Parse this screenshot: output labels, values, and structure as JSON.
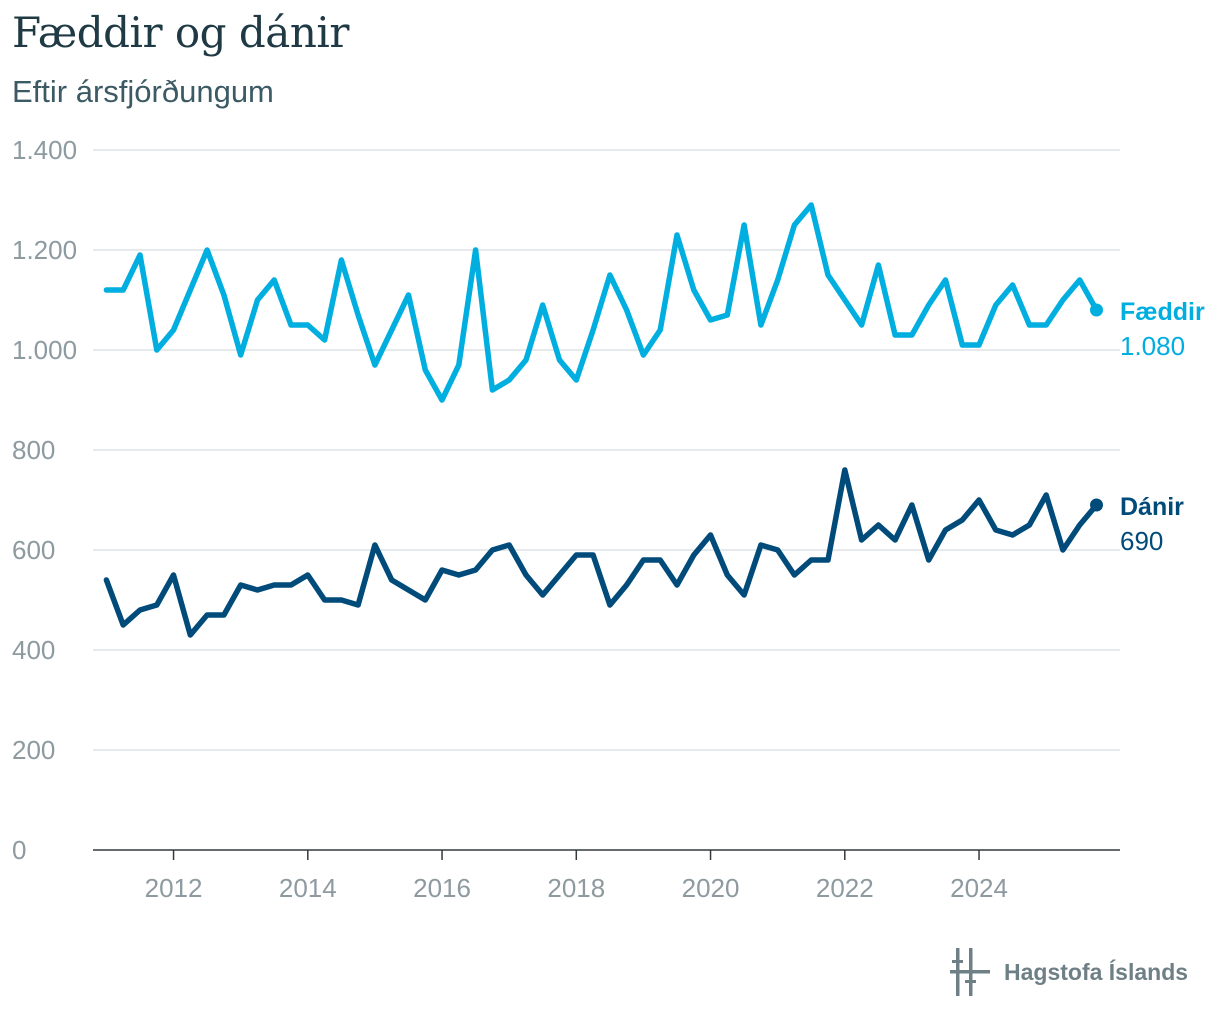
{
  "title": "Fæddir og dánir",
  "subtitle": "Eftir ársfjórðungum",
  "brand": "Hagstofa Íslands",
  "chart_data": {
    "type": "line",
    "title": "Fæddir og dánir",
    "subtitle": "Eftir ársfjórðungum",
    "xlabel": "",
    "ylabel": "",
    "ylim": [
      0,
      1400
    ],
    "yticks": [
      0,
      200,
      400,
      600,
      800,
      1000,
      1200,
      1400
    ],
    "ytick_labels": [
      "0",
      "200",
      "400",
      "600",
      "800",
      "1.000",
      "1.200",
      "1.400"
    ],
    "xlim": [
      2010.8,
      2026.1
    ],
    "xticks": [
      2012,
      2014,
      2016,
      2018,
      2020,
      2022,
      2024
    ],
    "xtick_labels": [
      "2012",
      "2014",
      "2016",
      "2018",
      "2020",
      "2022",
      "2024"
    ],
    "x_start": 2011.0,
    "x_step": 0.25,
    "grid": true,
    "legend": "direct-labels-right",
    "series": [
      {
        "name": "Fæddir",
        "color": "#00aee0",
        "last_label": "1.080",
        "values": [
          1120,
          1120,
          1190,
          1000,
          1040,
          1120,
          1200,
          1110,
          990,
          1100,
          1140,
          1050,
          1050,
          1020,
          1180,
          1070,
          970,
          1040,
          1110,
          960,
          900,
          970,
          1200,
          920,
          940,
          980,
          1090,
          980,
          940,
          1040,
          1150,
          1080,
          990,
          1040,
          1230,
          1120,
          1060,
          1070,
          1250,
          1050,
          1140,
          1250,
          1290,
          1150,
          1100,
          1050,
          1170,
          1030,
          1030,
          1090,
          1140,
          1010,
          1010,
          1090,
          1130,
          1050,
          1050,
          1100,
          1140,
          1080
        ]
      },
      {
        "name": "Dánir",
        "color": "#004b7a",
        "last_label": "690",
        "values": [
          540,
          450,
          480,
          490,
          550,
          430,
          470,
          470,
          530,
          520,
          530,
          530,
          550,
          500,
          500,
          490,
          610,
          540,
          520,
          500,
          560,
          550,
          560,
          600,
          610,
          550,
          510,
          550,
          590,
          590,
          490,
          530,
          580,
          580,
          530,
          590,
          630,
          550,
          510,
          610,
          600,
          550,
          580,
          580,
          760,
          620,
          650,
          620,
          690,
          580,
          640,
          660,
          700,
          640,
          630,
          650,
          710,
          600,
          650,
          690
        ]
      }
    ]
  }
}
